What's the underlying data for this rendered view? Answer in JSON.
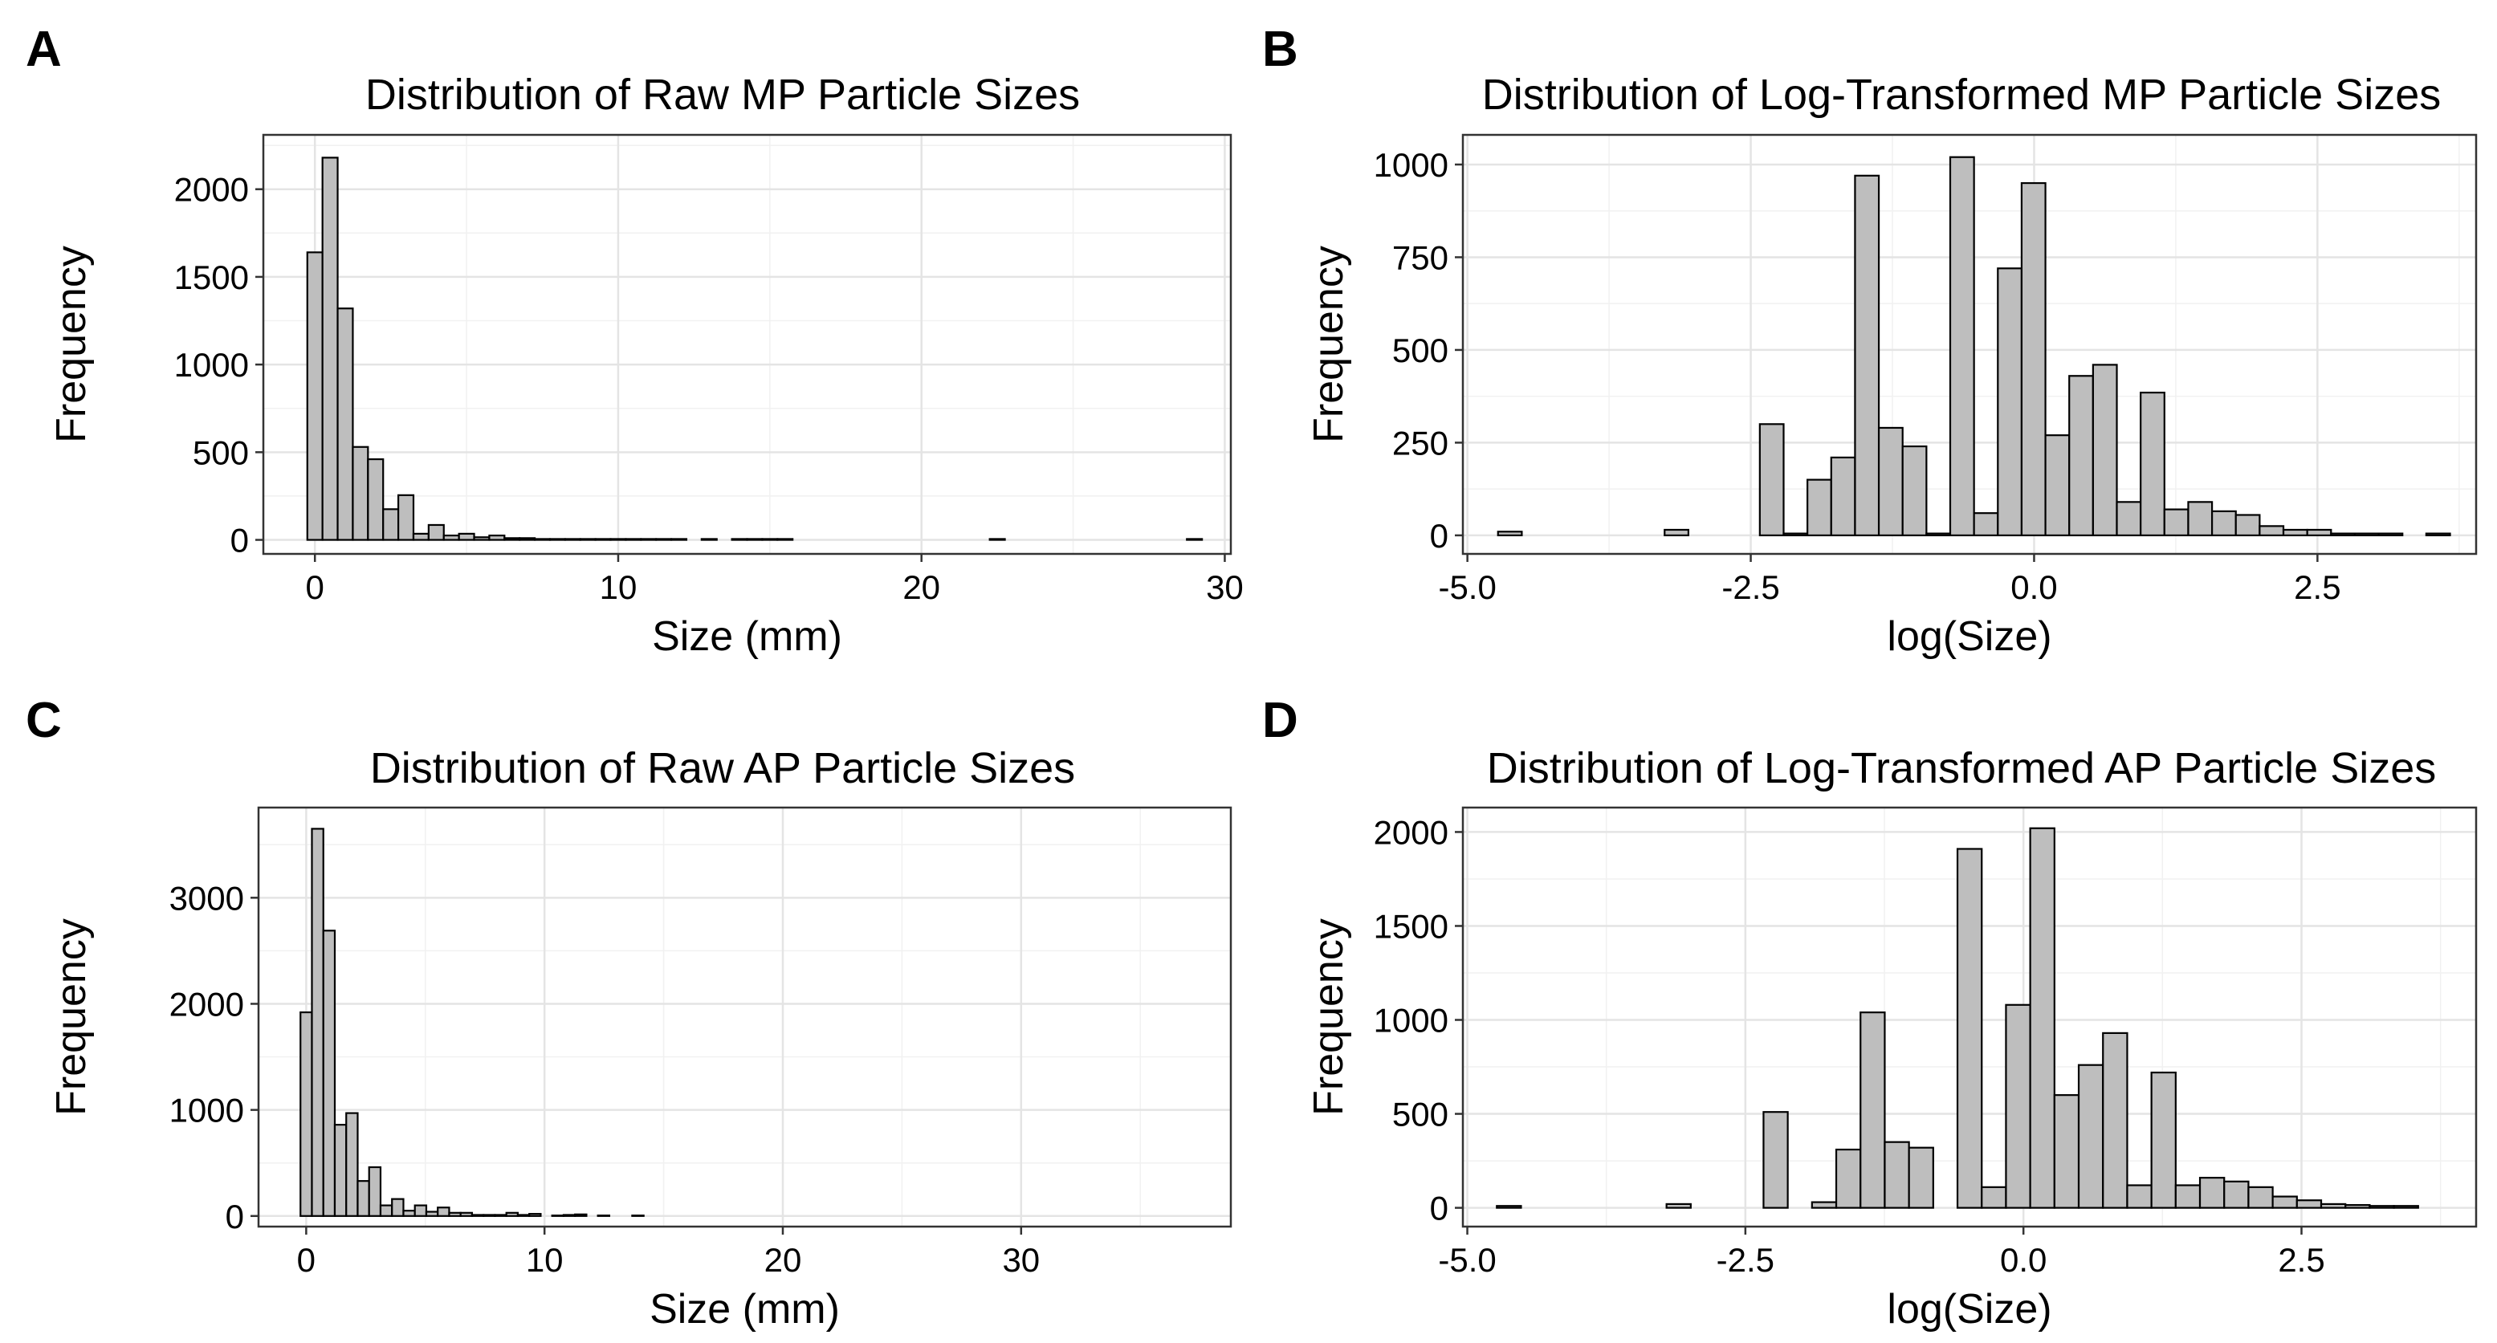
{
  "figure": {
    "name": "particle-size-distributions"
  },
  "chart_data": [
    {
      "panel": "A",
      "type": "bar",
      "title": "Distribution of Raw MP Particle Sizes",
      "xlabel": "Size (mm)",
      "ylabel": "Frequency",
      "xlim": [
        -1.7,
        30.2
      ],
      "ylim": [
        -80,
        2310
      ],
      "xticks": [
        0,
        10,
        20,
        30
      ],
      "xtick_labels": [
        "0",
        "10",
        "20",
        "30"
      ],
      "yticks": [
        0,
        500,
        1000,
        1500,
        2000
      ],
      "ytick_labels": [
        "0",
        "500",
        "1000",
        "1500",
        "2000"
      ],
      "bin_start": -0.25,
      "bin_width": 0.5,
      "values": [
        1640,
        2180,
        1320,
        530,
        460,
        175,
        255,
        35,
        85,
        25,
        35,
        15,
        25,
        10,
        10,
        5,
        5,
        5,
        5,
        5,
        5,
        5,
        5,
        5,
        5,
        0,
        5,
        0,
        5,
        5,
        5,
        5,
        0,
        0,
        0,
        0,
        0,
        0,
        0,
        0,
        0,
        0,
        0,
        0,
        0,
        5,
        0,
        0,
        0,
        0,
        0,
        0,
        0,
        0,
        0,
        0,
        0,
        0,
        5
      ],
      "fill": "#bebebe",
      "grid": true
    },
    {
      "panel": "B",
      "type": "bar",
      "title": "Distribution of Log-Transformed MP Particle Sizes",
      "xlabel": "log(Size)",
      "ylabel": "Frequency",
      "xlim": [
        -5.04,
        3.9
      ],
      "ylim": [
        -50,
        1080
      ],
      "xticks": [
        -5.0,
        -2.5,
        0.0,
        2.5
      ],
      "xtick_labels": [
        "-5.0",
        "-2.5",
        "0.0",
        "2.5"
      ],
      "yticks": [
        0,
        250,
        500,
        750,
        1000
      ],
      "ytick_labels": [
        "0",
        "250",
        "500",
        "750",
        "1000"
      ],
      "bin_start": -4.73,
      "bin_width": 0.21,
      "values": [
        10,
        0,
        0,
        0,
        0,
        0,
        0,
        15,
        0,
        0,
        0,
        300,
        5,
        150,
        210,
        970,
        290,
        240,
        5,
        1020,
        60,
        720,
        950,
        270,
        430,
        460,
        90,
        385,
        70,
        90,
        65,
        55,
        25,
        15,
        15,
        5,
        5,
        5,
        0,
        5
      ],
      "fill": "#bebebe",
      "grid": true
    },
    {
      "panel": "C",
      "type": "bar",
      "title": "Distribution of Raw AP Particle Sizes",
      "xlabel": "Size (mm)",
      "ylabel": "Frequency",
      "xlim": [
        -2.0,
        38.8
      ],
      "ylim": [
        -100,
        3850
      ],
      "xticks": [
        0,
        10,
        20,
        30
      ],
      "xtick_labels": [
        "0",
        "10",
        "20",
        "30"
      ],
      "yticks": [
        0,
        1000,
        2000,
        3000
      ],
      "ytick_labels": [
        "0",
        "1000",
        "2000",
        "3000"
      ],
      "bin_start": -0.24,
      "bin_width": 0.48,
      "values": [
        1920,
        3650,
        2690,
        860,
        970,
        330,
        460,
        100,
        160,
        50,
        100,
        40,
        80,
        30,
        30,
        10,
        10,
        10,
        30,
        10,
        20,
        0,
        5,
        10,
        15,
        0,
        5,
        0,
        0,
        5,
        0,
        0,
        0,
        0,
        0,
        0,
        0,
        0,
        0,
        0,
        0,
        0,
        0,
        0,
        0,
        0,
        0,
        0,
        0,
        0,
        0,
        0,
        0,
        0,
        0,
        0,
        0,
        0,
        0,
        0,
        0,
        0,
        0,
        0,
        0,
        0,
        0,
        0,
        0,
        0,
        0,
        0,
        0,
        0,
        0,
        0
      ],
      "fill": "#bebebe",
      "grid": true
    },
    {
      "panel": "D",
      "type": "bar",
      "title": "Distribution of Log-Transformed AP Particle Sizes",
      "xlabel": "log(Size)",
      "ylabel": "Frequency",
      "xlim": [
        -5.04,
        4.07
      ],
      "ylim": [
        -100,
        2130
      ],
      "xticks": [
        -5.0,
        -2.5,
        0.0,
        2.5
      ],
      "xtick_labels": [
        "-5.0",
        "-2.5",
        "0.0",
        "2.5"
      ],
      "yticks": [
        0,
        500,
        1000,
        1500,
        2000
      ],
      "ytick_labels": [
        "0",
        "500",
        "1000",
        "1500",
        "2000"
      ],
      "bin_start": -4.735,
      "bin_width": 0.218,
      "values": [
        10,
        0,
        0,
        0,
        0,
        0,
        0,
        20,
        0,
        0,
        0,
        510,
        0,
        30,
        310,
        1040,
        350,
        320,
        0,
        1910,
        110,
        1080,
        2020,
        600,
        760,
        930,
        120,
        720,
        120,
        160,
        140,
        110,
        60,
        40,
        20,
        15,
        10,
        10
      ],
      "fill": "#bebebe",
      "grid": true
    }
  ]
}
